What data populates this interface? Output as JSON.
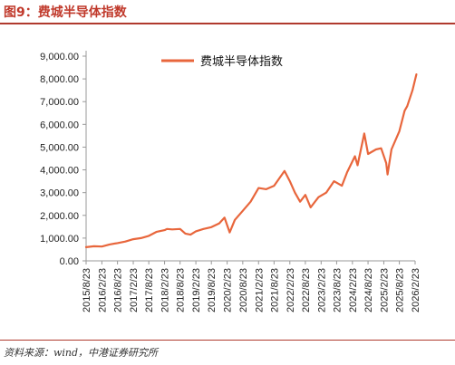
{
  "figure": {
    "title": "图9：费城半导体指数",
    "source": "资料来源：wind，中港证券研究所"
  },
  "colors": {
    "title": "#c0392b",
    "rule": "#b03a2e",
    "series": "#e8663c",
    "axis": "#999999"
  },
  "chart_data": {
    "type": "line",
    "title": "",
    "xlabel": "",
    "ylabel": "",
    "ylim": [
      0,
      9000
    ],
    "yticks": [
      "0.00",
      "1,000.00",
      "2,000.00",
      "3,000.00",
      "4,000.00",
      "5,000.00",
      "6,000.00",
      "7,000.00",
      "8,000.00",
      "9,000.00"
    ],
    "xticks": [
      "2015/8/23",
      "2016/2/23",
      "2016/8/23",
      "2017/2/23",
      "2017/8/23",
      "2018/2/23",
      "2018/8/23",
      "2019/2/23",
      "2019/8/23",
      "2020/2/23",
      "2020/8/23",
      "2021/2/23",
      "2021/8/23",
      "2022/2/23",
      "2022/8/23",
      "2023/2/23",
      "2023/8/23",
      "2024/2/23",
      "2024/8/23",
      "2025/2/23",
      "2025/8/23",
      "2026/2/23"
    ],
    "grid": false,
    "legend_position": "top-right",
    "series": [
      {
        "name": "费城半导体指数",
        "x": [
          "2015/8/23",
          "2015/11/23",
          "2016/2/23",
          "2016/5/23",
          "2016/8/23",
          "2016/11/23",
          "2017/2/23",
          "2017/5/23",
          "2017/8/23",
          "2017/11/23",
          "2018/2/23",
          "2018/3/23",
          "2018/5/23",
          "2018/8/23",
          "2018/10/23",
          "2018/12/23",
          "2019/2/23",
          "2019/5/23",
          "2019/8/23",
          "2019/11/23",
          "2020/1/23",
          "2020/3/23",
          "2020/5/23",
          "2020/8/23",
          "2020/11/23",
          "2021/2/23",
          "2021/5/23",
          "2021/8/23",
          "2021/12/23",
          "2022/2/23",
          "2022/4/23",
          "2022/6/23",
          "2022/8/23",
          "2022/10/23",
          "2023/1/23",
          "2023/4/23",
          "2023/7/23",
          "2023/10/23",
          "2023/12/23",
          "2024/3/23",
          "2024/4/23",
          "2024/7/10",
          "2024/8/23",
          "2024/11/23",
          "2025/1/23",
          "2025/3/23",
          "2025/4/8",
          "2025/5/23",
          "2025/8/23",
          "2025/10/23",
          "2025/11/23",
          "2026/1/23",
          "2026/3/10"
        ],
        "y": [
          600,
          640,
          630,
          720,
          780,
          850,
          950,
          1000,
          1100,
          1280,
          1350,
          1400,
          1380,
          1400,
          1200,
          1150,
          1300,
          1400,
          1480,
          1650,
          1900,
          1250,
          1800,
          2200,
          2600,
          3200,
          3150,
          3300,
          3950,
          3500,
          3000,
          2600,
          2900,
          2350,
          2800,
          3000,
          3500,
          3300,
          3900,
          4600,
          4200,
          5600,
          4700,
          4900,
          4950,
          4300,
          3800,
          4900,
          5700,
          6600,
          6800,
          7500,
          8200
        ]
      }
    ]
  }
}
